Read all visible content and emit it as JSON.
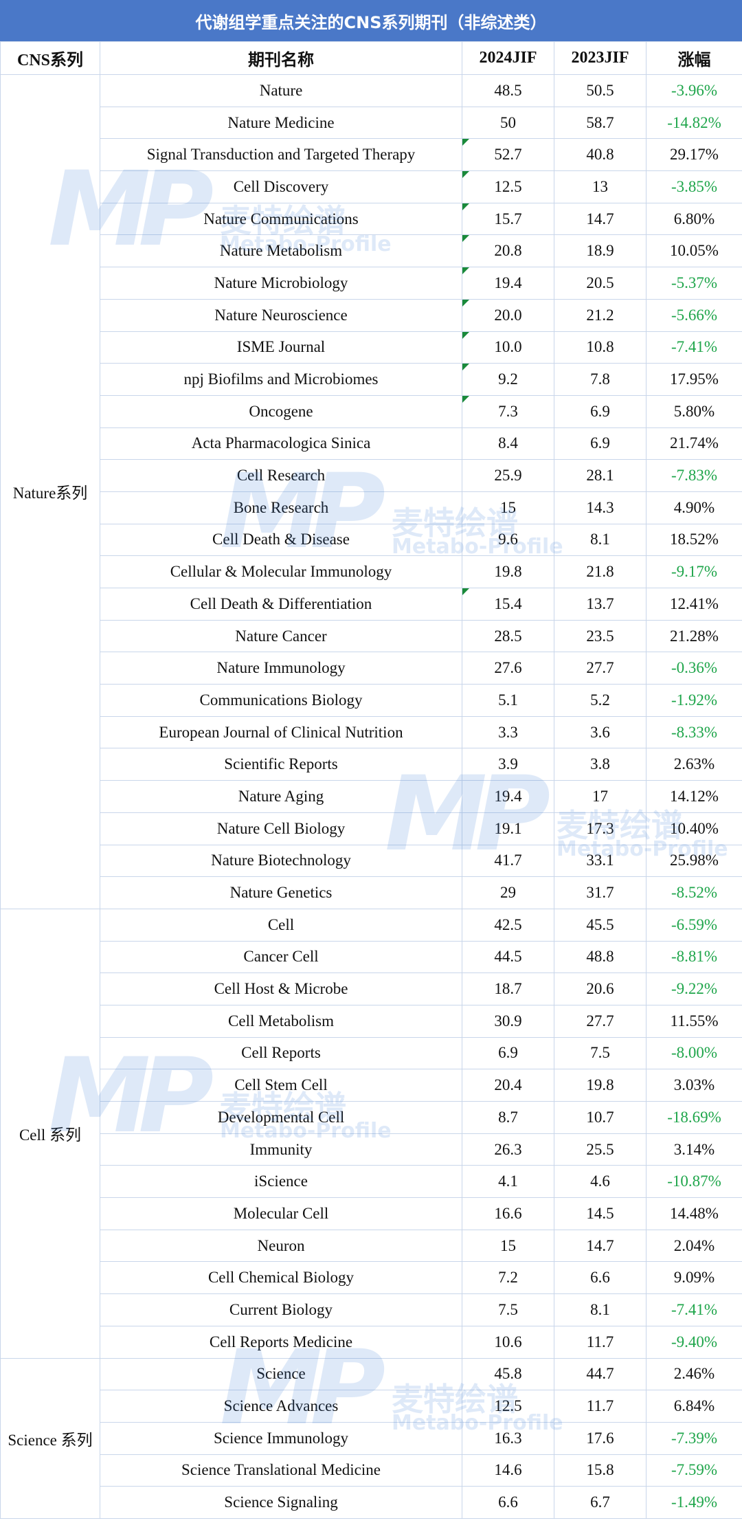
{
  "title": "代谢组学重点关注的CNS系列期刊（非综述类）",
  "headers": [
    "CNS系列",
    "期刊名称",
    "2024JIF",
    "2023JIF",
    "涨幅"
  ],
  "watermark": {
    "logo": "MP",
    "cn": "麦特绘谱",
    "en": "Metabo-Profile"
  },
  "colors": {
    "header_bg": "#4a78c8",
    "negative": "#1ea54a",
    "grid": "#c9d6ea"
  },
  "groups": [
    {
      "name": "Nature系列",
      "rows": [
        {
          "journal": "Nature",
          "jif2024": "48.5",
          "jif2023": "50.5",
          "change": "-3.96%"
        },
        {
          "journal": "Nature Medicine",
          "jif2024": "50",
          "jif2023": "58.7",
          "change": "-14.82%"
        },
        {
          "journal": "Signal Transduction and Targeted Therapy",
          "jif2024": "52.7",
          "jif2023": "40.8",
          "change": "29.17%",
          "mark": true
        },
        {
          "journal": "Cell Discovery",
          "jif2024": "12.5",
          "jif2023": "13",
          "change": "-3.85%",
          "mark": true
        },
        {
          "journal": "Nature Communications",
          "jif2024": "15.7",
          "jif2023": "14.7",
          "change": "6.80%",
          "mark": true
        },
        {
          "journal": "Nature Metabolism",
          "jif2024": "20.8",
          "jif2023": "18.9",
          "change": "10.05%",
          "mark": true
        },
        {
          "journal": "Nature Microbiology",
          "jif2024": "19.4",
          "jif2023": "20.5",
          "change": "-5.37%",
          "mark": true
        },
        {
          "journal": "Nature Neuroscience",
          "jif2024": "20.0",
          "jif2023": "21.2",
          "change": "-5.66%",
          "mark": true
        },
        {
          "journal": "ISME Journal",
          "jif2024": "10.0",
          "jif2023": "10.8",
          "change": "-7.41%",
          "mark": true
        },
        {
          "journal": "npj Biofilms and Microbiomes",
          "jif2024": "9.2",
          "jif2023": "7.8",
          "change": "17.95%",
          "mark": true
        },
        {
          "journal": "Oncogene",
          "jif2024": "7.3",
          "jif2023": "6.9",
          "change": "5.80%",
          "mark": true
        },
        {
          "journal": "Acta Pharmacologica Sinica",
          "jif2024": "8.4",
          "jif2023": "6.9",
          "change": "21.74%"
        },
        {
          "journal": "Cell Research",
          "jif2024": "25.9",
          "jif2023": "28.1",
          "change": "-7.83%"
        },
        {
          "journal": "Bone Research",
          "jif2024": "15",
          "jif2023": "14.3",
          "change": "4.90%"
        },
        {
          "journal": "Cell Death & Disease",
          "jif2024": "9.6",
          "jif2023": "8.1",
          "change": "18.52%"
        },
        {
          "journal": "Cellular & Molecular Immunology",
          "jif2024": "19.8",
          "jif2023": "21.8",
          "change": "-9.17%"
        },
        {
          "journal": "Cell Death & Differentiation",
          "jif2024": "15.4",
          "jif2023": "13.7",
          "change": "12.41%",
          "mark": true
        },
        {
          "journal": "Nature Cancer",
          "jif2024": "28.5",
          "jif2023": "23.5",
          "change": "21.28%"
        },
        {
          "journal": "Nature Immunology",
          "jif2024": "27.6",
          "jif2023": "27.7",
          "change": "-0.36%"
        },
        {
          "journal": "Communications Biology",
          "jif2024": "5.1",
          "jif2023": "5.2",
          "change": "-1.92%"
        },
        {
          "journal": "European Journal of Clinical Nutrition",
          "jif2024": "3.3",
          "jif2023": "3.6",
          "change": "-8.33%"
        },
        {
          "journal": "Scientific Reports",
          "jif2024": "3.9",
          "jif2023": "3.8",
          "change": "2.63%"
        },
        {
          "journal": "Nature Aging",
          "jif2024": "19.4",
          "jif2023": "17",
          "change": "14.12%"
        },
        {
          "journal": "Nature Cell Biology",
          "jif2024": "19.1",
          "jif2023": "17.3",
          "change": "10.40%"
        },
        {
          "journal": "Nature Biotechnology",
          "jif2024": "41.7",
          "jif2023": "33.1",
          "change": "25.98%"
        },
        {
          "journal": "Nature Genetics",
          "jif2024": "29",
          "jif2023": "31.7",
          "change": "-8.52%"
        }
      ]
    },
    {
      "name": "Cell 系列",
      "rows": [
        {
          "journal": "Cell",
          "jif2024": "42.5",
          "jif2023": "45.5",
          "change": "-6.59%"
        },
        {
          "journal": "Cancer Cell",
          "jif2024": "44.5",
          "jif2023": "48.8",
          "change": "-8.81%"
        },
        {
          "journal": "Cell Host & Microbe",
          "jif2024": "18.7",
          "jif2023": "20.6",
          "change": "-9.22%"
        },
        {
          "journal": "Cell Metabolism",
          "jif2024": "30.9",
          "jif2023": "27.7",
          "change": "11.55%"
        },
        {
          "journal": "Cell Reports",
          "jif2024": "6.9",
          "jif2023": "7.5",
          "change": "-8.00%"
        },
        {
          "journal": "Cell Stem Cell",
          "jif2024": "20.4",
          "jif2023": "19.8",
          "change": "3.03%"
        },
        {
          "journal": "Developmental Cell",
          "jif2024": "8.7",
          "jif2023": "10.7",
          "change": "-18.69%"
        },
        {
          "journal": "Immunity",
          "jif2024": "26.3",
          "jif2023": "25.5",
          "change": "3.14%"
        },
        {
          "journal": "iScience",
          "jif2024": "4.1",
          "jif2023": "4.6",
          "change": "-10.87%"
        },
        {
          "journal": "Molecular Cell",
          "jif2024": "16.6",
          "jif2023": "14.5",
          "change": "14.48%"
        },
        {
          "journal": "Neuron",
          "jif2024": "15",
          "jif2023": "14.7",
          "change": "2.04%"
        },
        {
          "journal": "Cell Chemical Biology",
          "jif2024": "7.2",
          "jif2023": "6.6",
          "change": "9.09%"
        },
        {
          "journal": "Current Biology",
          "jif2024": "7.5",
          "jif2023": "8.1",
          "change": "-7.41%"
        },
        {
          "journal": "Cell Reports Medicine",
          "jif2024": "10.6",
          "jif2023": "11.7",
          "change": "-9.40%"
        }
      ]
    },
    {
      "name": "Science 系列",
      "rows": [
        {
          "journal": "Science",
          "jif2024": "45.8",
          "jif2023": "44.7",
          "change": "2.46%"
        },
        {
          "journal": "Science Advances",
          "jif2024": "12.5",
          "jif2023": "11.7",
          "change": "6.84%"
        },
        {
          "journal": "Science Immunology",
          "jif2024": "16.3",
          "jif2023": "17.6",
          "change": "-7.39%"
        },
        {
          "journal": "Science Translational Medicine",
          "jif2024": "14.6",
          "jif2023": "15.8",
          "change": "-7.59%"
        },
        {
          "journal": "Science Signaling",
          "jif2024": "6.6",
          "jif2023": "6.7",
          "change": "-1.49%"
        }
      ]
    }
  ]
}
